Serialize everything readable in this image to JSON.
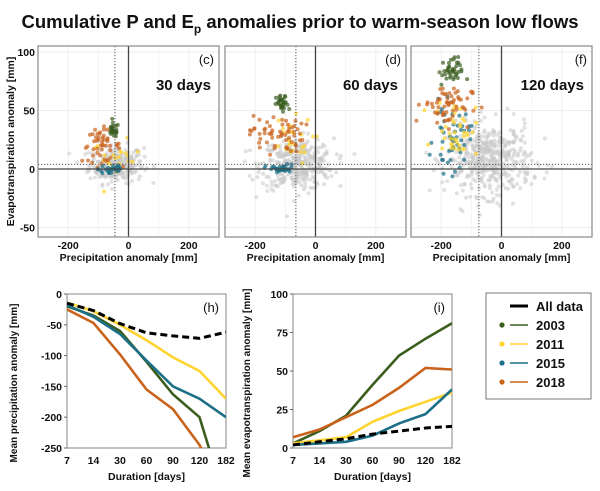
{
  "title": {
    "main": "Cumulative P and E",
    "sub": "p",
    "rest": " anomalies prior to warm-season low flows"
  },
  "colors": {
    "All data": "#000000",
    "2003": "#3b5e1f",
    "2011": "#ffd42e",
    "2015": "#1b6f86",
    "2018": "#c9631c",
    "background_points": "#c8c8c8"
  },
  "chart_data": [
    {
      "type": "scatter",
      "panel_label": "(c)",
      "duration_label": "30 days",
      "xlabel": "Precipitation anomaly [mm]",
      "ylabel": "Evapotranspiration anomaly [mm]",
      "xlim": [
        -300,
        300
      ],
      "ylim": [
        -58,
        105
      ],
      "xticks": [
        "-200",
        "0",
        "200"
      ],
      "yticks": [
        "100",
        "50",
        "0",
        "-50"
      ],
      "grid": true,
      "median_lines": {
        "x": -45,
        "y": 4
      },
      "clusters": [
        {
          "series": "background_points",
          "cx": -40,
          "cy": 4,
          "sx": 45,
          "sy": 8,
          "n": 260
        },
        {
          "series": "2011",
          "cx": -40,
          "cy": 8,
          "sx": 40,
          "sy": 8,
          "n": 22
        },
        {
          "series": "2018",
          "cx": -90,
          "cy": 20,
          "sx": 32,
          "sy": 7,
          "n": 50
        },
        {
          "series": "2015",
          "cx": -55,
          "cy": 0,
          "sx": 22,
          "sy": 3,
          "n": 28
        },
        {
          "series": "2003",
          "cx": -50,
          "cy": 33,
          "sx": 9,
          "sy": 3,
          "n": 26
        }
      ]
    },
    {
      "type": "scatter",
      "panel_label": "(d)",
      "duration_label": "60 days",
      "xlabel": "Precipitation anomaly [mm]",
      "xlim": [
        -300,
        300
      ],
      "ylim": [
        -58,
        105
      ],
      "xticks": [
        "-200",
        "0",
        "200"
      ],
      "grid": true,
      "median_lines": {
        "x": -65,
        "y": 4
      },
      "clusters": [
        {
          "series": "background_points",
          "cx": -60,
          "cy": 4,
          "sx": 60,
          "sy": 11,
          "n": 360
        },
        {
          "series": "2011",
          "cx": -90,
          "cy": 24,
          "sx": 40,
          "sy": 10,
          "n": 26
        },
        {
          "series": "2018",
          "cx": -130,
          "cy": 30,
          "sx": 45,
          "sy": 8,
          "n": 60
        },
        {
          "series": "2015",
          "cx": -115,
          "cy": 0,
          "sx": 25,
          "sy": 2,
          "n": 32
        },
        {
          "series": "2003",
          "cx": -110,
          "cy": 55,
          "sx": 10,
          "sy": 4,
          "n": 30
        }
      ]
    },
    {
      "type": "scatter",
      "panel_label": "(f)",
      "duration_label": "120 days",
      "xlabel": "Precipitation anomaly [mm]",
      "xlim": [
        -300,
        300
      ],
      "ylim": [
        -58,
        105
      ],
      "xticks": [
        "-200",
        "0",
        "200"
      ],
      "grid": true,
      "median_lines": {
        "x": -75,
        "y": 4
      },
      "clusters": [
        {
          "series": "background_points",
          "cx": -40,
          "cy": 8,
          "sx": 70,
          "sy": 15,
          "n": 460
        },
        {
          "series": "2015",
          "cx": -165,
          "cy": 25,
          "sx": 30,
          "sy": 14,
          "n": 50
        },
        {
          "series": "2011",
          "cx": -150,
          "cy": 35,
          "sx": 35,
          "sy": 12,
          "n": 40
        },
        {
          "series": "2018",
          "cx": -180,
          "cy": 55,
          "sx": 40,
          "sy": 9,
          "n": 60
        },
        {
          "series": "2003",
          "cx": -170,
          "cy": 83,
          "sx": 20,
          "sy": 6,
          "n": 40
        }
      ]
    },
    {
      "type": "line",
      "panel_label": "(h)",
      "xlabel": "Duration [days]",
      "ylabel": "Mean precipitation anomaly [mm]",
      "categories": [
        "7",
        "14",
        "30",
        "60",
        "90",
        "120",
        "182"
      ],
      "ylim": [
        -250,
        0
      ],
      "yticks": [
        "0",
        "-50",
        "-100",
        "-150",
        "-200",
        "-250"
      ],
      "series": [
        {
          "name": "2003",
          "values": [
            -20,
            -35,
            -60,
            -110,
            -163,
            -200,
            -340
          ]
        },
        {
          "name": "2011",
          "values": [
            -14,
            -28,
            -50,
            -75,
            -103,
            -125,
            -170
          ]
        },
        {
          "name": "2015",
          "values": [
            -18,
            -37,
            -65,
            -108,
            -150,
            -170,
            -200
          ]
        },
        {
          "name": "2018",
          "values": [
            -25,
            -47,
            -98,
            -155,
            -187,
            -245,
            -330
          ]
        },
        {
          "name": "All data",
          "values": [
            -15,
            -27,
            -48,
            -63,
            -68,
            -72,
            -62
          ],
          "dashed": true
        }
      ]
    },
    {
      "type": "line",
      "panel_label": "(i)",
      "xlabel": "Duration [days]",
      "ylabel": "Mean evapotranspiration anomaly [mm]",
      "categories": [
        "7",
        "14",
        "30",
        "60",
        "90",
        "120",
        "182"
      ],
      "ylim": [
        0,
        100
      ],
      "yticks": [
        "100",
        "75",
        "50",
        "25",
        "0"
      ],
      "series": [
        {
          "name": "2003",
          "values": [
            3,
            11,
            21,
            41,
            60,
            71,
            81
          ]
        },
        {
          "name": "2011",
          "values": [
            3,
            5,
            7,
            17,
            24,
            30,
            36
          ]
        },
        {
          "name": "2015",
          "values": [
            2,
            3,
            4,
            8,
            16,
            22,
            38
          ]
        },
        {
          "name": "2018",
          "values": [
            7,
            12,
            20,
            28,
            39,
            52,
            51
          ]
        },
        {
          "name": "All data",
          "values": [
            2,
            4,
            6,
            9,
            11,
            13,
            14
          ],
          "dashed": true
        }
      ]
    }
  ],
  "legend": {
    "placement": "right",
    "items": [
      {
        "label": "All data",
        "marker": false
      },
      {
        "label": "2003",
        "marker": true
      },
      {
        "label": "2011",
        "marker": true
      },
      {
        "label": "2015",
        "marker": true
      },
      {
        "label": "2018",
        "marker": true
      }
    ]
  }
}
